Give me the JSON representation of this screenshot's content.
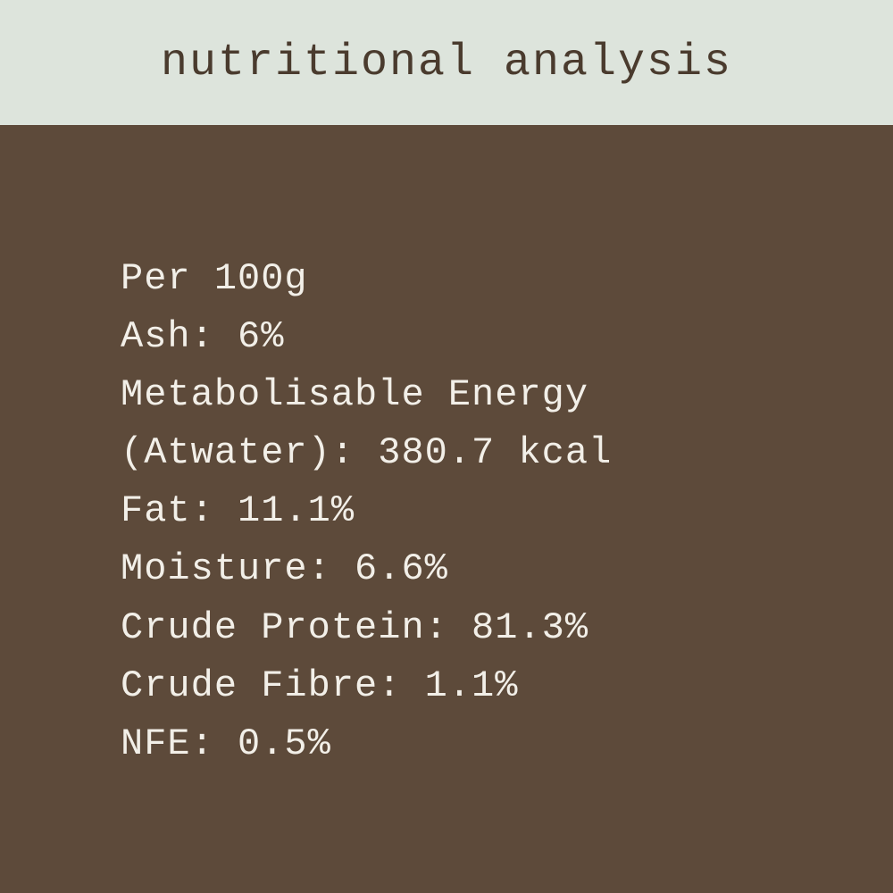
{
  "colors": {
    "header_bg": "#dde4dc",
    "header_text": "#4a3b2e",
    "body_bg": "#5d4a3a",
    "body_text": "#f2efe8"
  },
  "typography": {
    "header_fontsize": 50,
    "body_fontsize": 42,
    "font_family": "Courier New"
  },
  "header": {
    "title": "nutritional analysis"
  },
  "content": {
    "lines": [
      "Per 100g",
      "Ash: 6%",
      "Metabolisable Energy",
      "(Atwater): 380.7 kcal",
      "Fat: 11.1%",
      "Moisture: 6.6%",
      "Crude Protein: 81.3%",
      "Crude Fibre: 1.1%",
      "NFE: 0.5%"
    ]
  }
}
